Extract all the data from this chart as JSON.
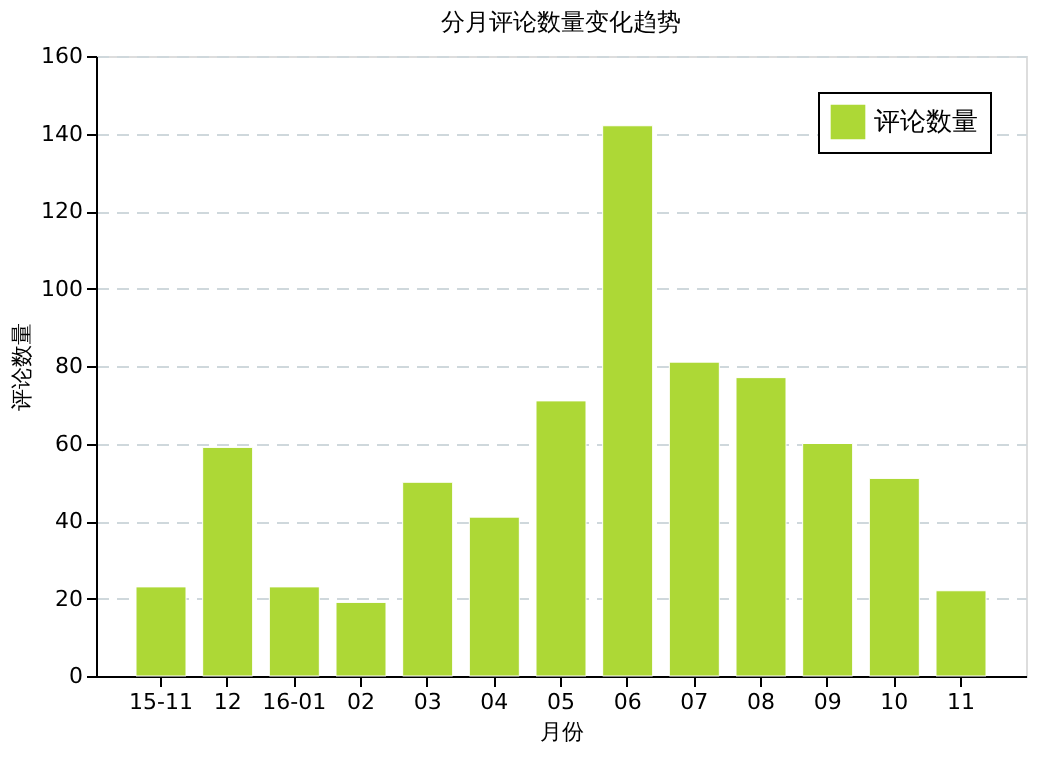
{
  "chart_data": {
    "type": "bar",
    "title": "分月评论数量变化趋势",
    "xlabel": "月份",
    "ylabel": "评论数量",
    "categories": [
      "15-11",
      "12",
      "16-01",
      "02",
      "03",
      "04",
      "05",
      "06",
      "07",
      "08",
      "09",
      "10",
      "11"
    ],
    "series": [
      {
        "name": "评论数量",
        "color": "#add836",
        "values": [
          23,
          59,
          23,
          19,
          50,
          41,
          71,
          142,
          81,
          77,
          60,
          51,
          22
        ]
      }
    ],
    "ylim": [
      0,
      160
    ],
    "yticks": [
      0,
      20,
      40,
      60,
      80,
      100,
      120,
      140,
      160
    ],
    "grid": "y",
    "legend": "top right"
  }
}
